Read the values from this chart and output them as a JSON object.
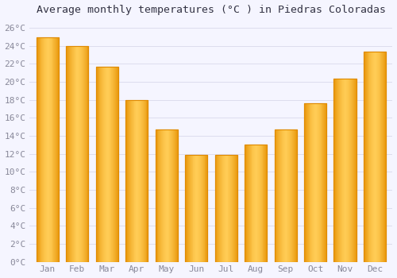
{
  "title": "Average monthly temperatures (°C ) in Piedras Coloradas",
  "months": [
    "Jan",
    "Feb",
    "Mar",
    "Apr",
    "May",
    "Jun",
    "Jul",
    "Aug",
    "Sep",
    "Oct",
    "Nov",
    "Dec"
  ],
  "values": [
    25.0,
    24.0,
    21.7,
    18.0,
    14.7,
    11.9,
    11.9,
    13.0,
    14.7,
    17.6,
    20.4,
    23.4
  ],
  "bar_color_main": "#FFB319",
  "bar_color_edge": "#E08A00",
  "bar_color_light": "#FFCC66",
  "background_color": "#F5F5FF",
  "plot_bg_color": "#F5F5FF",
  "grid_color": "#DDDDEE",
  "ylim": [
    0,
    27
  ],
  "yticks": [
    0,
    2,
    4,
    6,
    8,
    10,
    12,
    14,
    16,
    18,
    20,
    22,
    24,
    26
  ],
  "title_fontsize": 9.5,
  "tick_fontsize": 8,
  "tick_label_color": "#888899",
  "title_color": "#333344",
  "bar_width": 0.75,
  "font_family": "monospace"
}
